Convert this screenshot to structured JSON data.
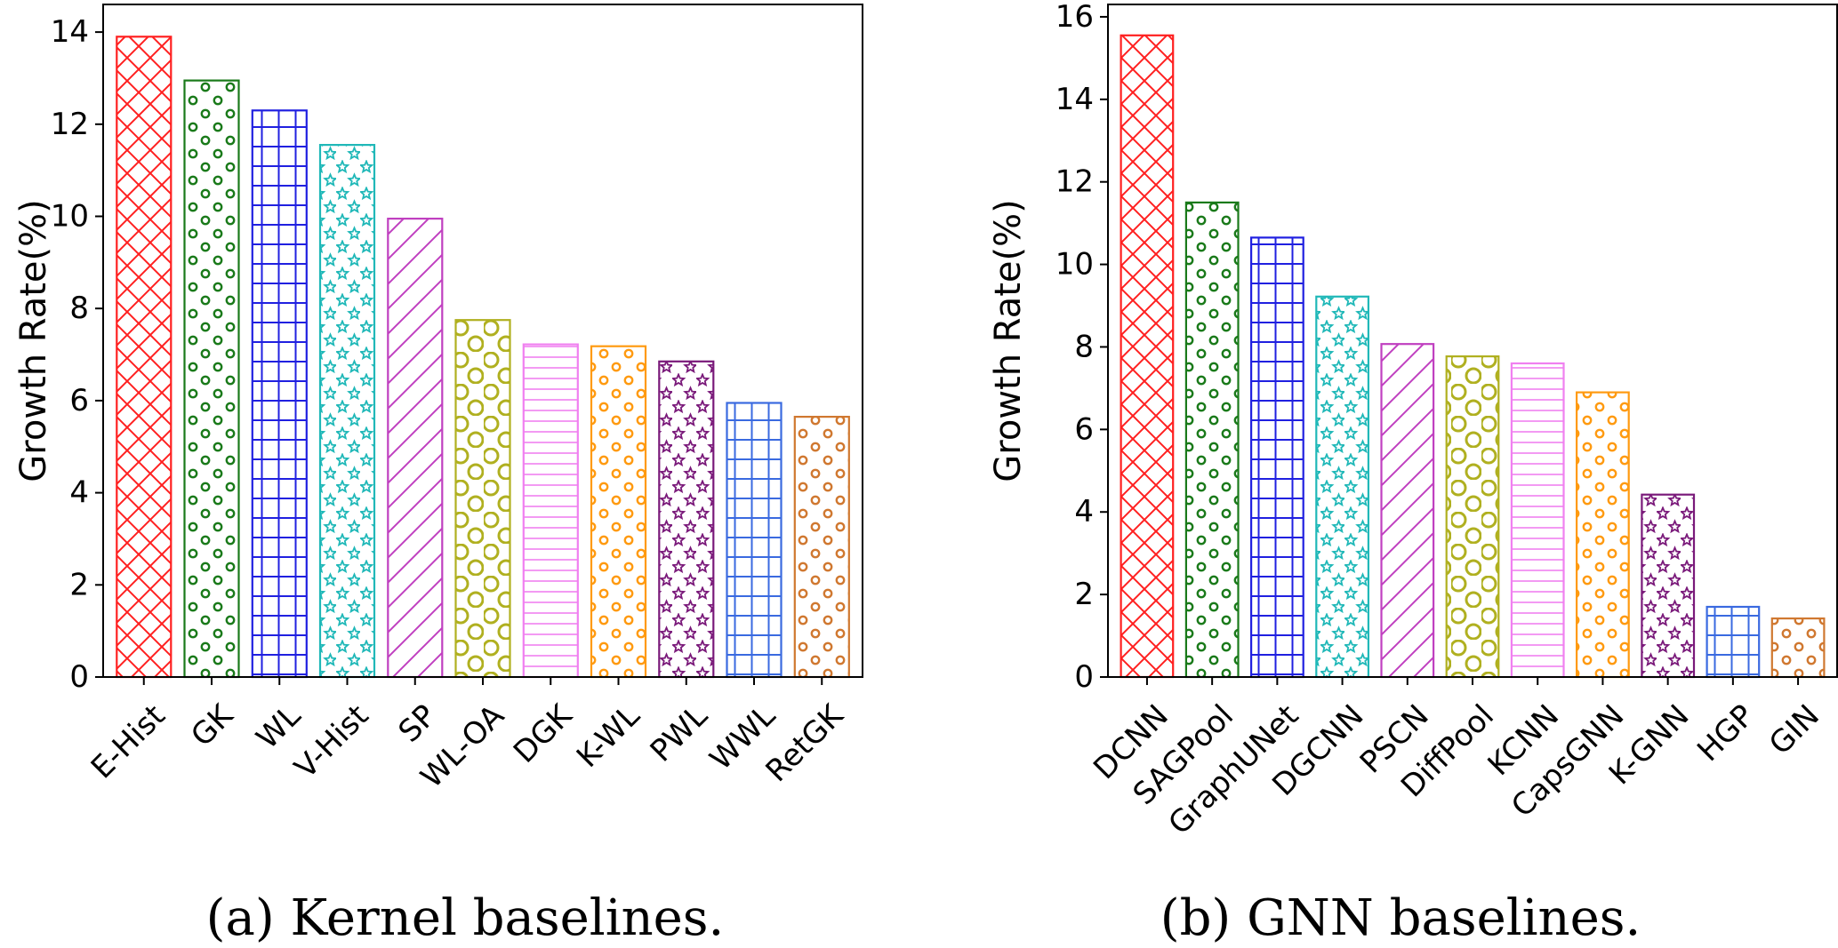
{
  "chart_data": [
    {
      "type": "bar",
      "caption": "(a)  Kernel baselines.",
      "ylabel": "Growth Rate(%)",
      "xlabel": "",
      "ylim": [
        0,
        14.6
      ],
      "yticks": [
        0,
        2,
        4,
        6,
        8,
        10,
        12,
        14
      ],
      "categories": [
        "E-Hist",
        "GK",
        "WL",
        "V-Hist",
        "SP",
        "WL-OA",
        "DGK",
        "K-WL",
        "PWL",
        "WWL",
        "RetGK"
      ],
      "values": [
        13.9,
        12.95,
        12.3,
        11.55,
        9.95,
        7.75,
        7.22,
        7.18,
        6.85,
        5.95,
        5.65
      ],
      "colors": [
        "#ff2020",
        "#1a7a1a",
        "#2020e0",
        "#20b8b8",
        "#c040c0",
        "#b0b020",
        "#f080f0",
        "#ff9a10",
        "#7a1a7a",
        "#3a6ae0",
        "#d07830"
      ],
      "patterns": [
        "cross",
        "dots",
        "grid",
        "stars",
        "diag",
        "rings",
        "hlines",
        "dots",
        "stars",
        "grid",
        "dots"
      ]
    },
    {
      "type": "bar",
      "caption": "(b)  GNN baselines.",
      "ylabel": "Growth Rate(%)",
      "xlabel": "",
      "ylim": [
        0,
        16.3
      ],
      "yticks": [
        0,
        2,
        4,
        6,
        8,
        10,
        12,
        14,
        16
      ],
      "categories": [
        "DCNN",
        "SAGPool",
        "GraphUNet",
        "DGCNN",
        "PSCN",
        "DiffPool",
        "KCNN",
        "CapsGNN",
        "K-GNN",
        "HGP",
        "GIN"
      ],
      "values": [
        15.55,
        11.5,
        10.65,
        9.22,
        8.07,
        7.77,
        7.6,
        6.9,
        4.42,
        1.7,
        1.42
      ],
      "colors": [
        "#ff2020",
        "#1a7a1a",
        "#2020e0",
        "#20b8b8",
        "#c040c0",
        "#b0b020",
        "#f080f0",
        "#ff9a10",
        "#7a1a7a",
        "#3a6ae0",
        "#d07830"
      ],
      "patterns": [
        "cross",
        "dots",
        "grid",
        "stars",
        "diag",
        "rings",
        "hlines",
        "dots",
        "stars",
        "grid",
        "dots"
      ]
    }
  ]
}
